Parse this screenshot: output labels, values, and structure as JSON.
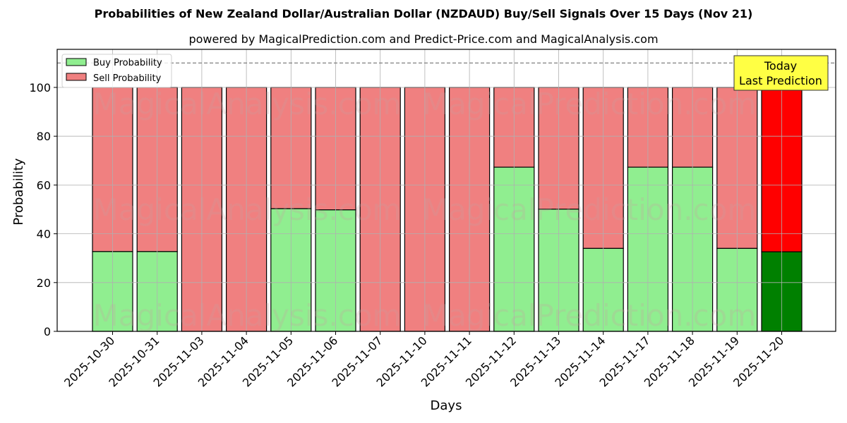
{
  "title": "Probabilities of New Zealand Dollar/Australian Dollar (NZDAUD) Buy/Sell Signals Over 15 Days (Nov 21)",
  "subtitle": "powered by MagicalPrediction.com and Predict-Price.com and MagicalAnalysis.com",
  "watermarks": [
    "MagicalAnalysis.com",
    "MagicalPrediction.com"
  ],
  "annotation": {
    "line1": "Today",
    "line2": "Last Prediction",
    "bg_color": "#ffff44"
  },
  "legend": {
    "buy_label": "Buy Probability",
    "sell_label": "Sell Probability"
  },
  "colors": {
    "buy": "#90ee90",
    "sell": "#f08080",
    "buy_today": "#008000",
    "sell_today": "#ff0000"
  },
  "chart_data": {
    "type": "bar",
    "stacked": true,
    "title": "Probabilities of New Zealand Dollar/Australian Dollar (NZDAUD) Buy/Sell Signals Over 15 Days (Nov 21)",
    "subtitle": "powered by MagicalPrediction.com and Predict-Price.com and MagicalAnalysis.com",
    "xlabel": "Days",
    "ylabel": "Probability",
    "ylim": [
      0,
      115
    ],
    "yticks": [
      0,
      20,
      40,
      60,
      80,
      100
    ],
    "grid": true,
    "legend_position": "upper left",
    "reference_line": {
      "y": 110,
      "style": "dashed"
    },
    "categories": [
      "2025-10-30",
      "2025-10-31",
      "2025-11-03",
      "2025-11-04",
      "2025-11-05",
      "2025-11-06",
      "2025-11-07",
      "2025-11-10",
      "2025-11-11",
      "2025-11-12",
      "2025-11-13",
      "2025-11-14",
      "2025-11-17",
      "2025-11-18",
      "2025-11-19",
      "2025-11-20"
    ],
    "series": [
      {
        "name": "Buy Probability",
        "values": [
          32.7,
          32.7,
          0,
          0,
          50.3,
          49.8,
          0,
          0,
          0,
          67.3,
          50.1,
          34.0,
          67.3,
          67.3,
          34.0,
          32.6
        ]
      },
      {
        "name": "Sell Probability",
        "values": [
          67.3,
          67.3,
          100,
          100,
          49.7,
          50.2,
          100,
          100,
          100,
          32.7,
          49.9,
          66.0,
          32.7,
          32.7,
          66.0,
          67.4
        ]
      }
    ],
    "highlight": {
      "category": "2025-11-20",
      "label": "Today Last Prediction"
    }
  }
}
